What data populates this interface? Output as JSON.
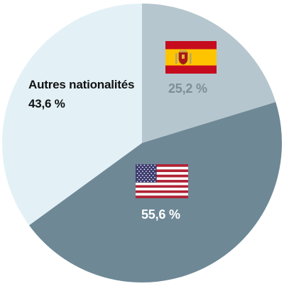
{
  "chart_data": {
    "type": "pie",
    "title": "",
    "slices": [
      {
        "name": "",
        "value": 25.2,
        "label": "25,2 %",
        "color": "#b6c6ce",
        "flag": "spain-flag"
      },
      {
        "name": "",
        "value": 55.6,
        "label": "55,6 %",
        "color": "#6e8896",
        "flag": "us-flag"
      },
      {
        "name": "Autres nationalités",
        "value": 43.6,
        "label": "43,6 %",
        "color": "#e3f1f7",
        "flag": ""
      }
    ],
    "legend": "none",
    "start": "top",
    "direction": "clockwise"
  },
  "colors": {
    "spain_red": "#c60b1e",
    "spain_yellow": "#ffc400",
    "us_red": "#b22234",
    "us_blue": "#3c3b6e",
    "us_white": "#ffffff"
  }
}
